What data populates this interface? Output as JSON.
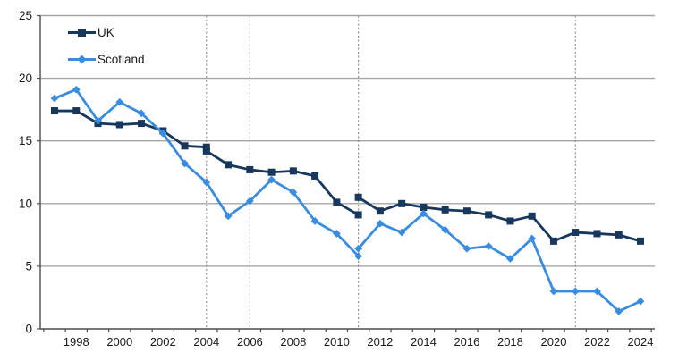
{
  "chart_data": {
    "type": "line",
    "title": "",
    "xlabel": "",
    "ylabel": "",
    "x_start": 1997,
    "x_end": 2024,
    "x_tick_labels": [
      "1998",
      "2000",
      "2002",
      "2004",
      "2006",
      "2008",
      "2010",
      "2012",
      "2014",
      "2016",
      "2018",
      "2020",
      "2022",
      "2024"
    ],
    "ylim": [
      0,
      25
    ],
    "yticks": [
      0,
      5,
      10,
      15,
      20,
      25
    ],
    "grid": "horizontal",
    "legend_position": "inside-top-left",
    "reference_lines_x": [
      2004,
      2006,
      2011,
      2021
    ],
    "reference_line_style": "dashed",
    "colors": {
      "grid": "#A6A6A6",
      "axis": "#4D4D4D",
      "reference_line": "#7F7F7F",
      "tick_label": "#1a1a1a"
    },
    "series": [
      {
        "name": "UK",
        "color": "#17375D",
        "marker": "square",
        "note": "series breaks at 2004 and 2011",
        "segments": [
          {
            "start_year": 1997,
            "values": [
              17.4,
              17.4,
              16.4,
              16.3,
              16.4,
              15.8,
              14.6,
              14.5
            ]
          },
          {
            "start_year": 2004,
            "values": [
              14.2,
              13.1,
              12.7,
              12.5,
              12.6,
              12.2,
              10.1,
              9.1
            ]
          },
          {
            "start_year": 2011,
            "values": [
              10.5,
              9.4,
              10.0,
              9.7,
              9.5,
              9.4,
              9.1,
              8.6,
              9.0,
              7.0,
              7.7,
              7.6,
              7.5,
              7.0
            ]
          }
        ]
      },
      {
        "name": "Scotland",
        "color": "#3A8DDE",
        "marker": "diamond",
        "note": "series break at 2011",
        "segments": [
          {
            "start_year": 1997,
            "values": [
              18.4,
              19.1,
              16.6,
              18.1,
              17.2,
              15.6,
              13.2,
              11.7,
              9.0,
              10.2,
              11.9,
              10.9,
              8.6,
              7.6,
              5.8
            ]
          },
          {
            "start_year": 2011,
            "values": [
              6.4,
              8.4,
              7.7,
              9.2,
              7.9,
              6.4,
              6.6,
              5.6,
              7.2,
              3.0,
              3.0,
              3.0,
              1.4,
              2.2
            ]
          }
        ]
      }
    ]
  },
  "legend": {
    "items": [
      {
        "label": "UK"
      },
      {
        "label": "Scotland"
      }
    ]
  }
}
